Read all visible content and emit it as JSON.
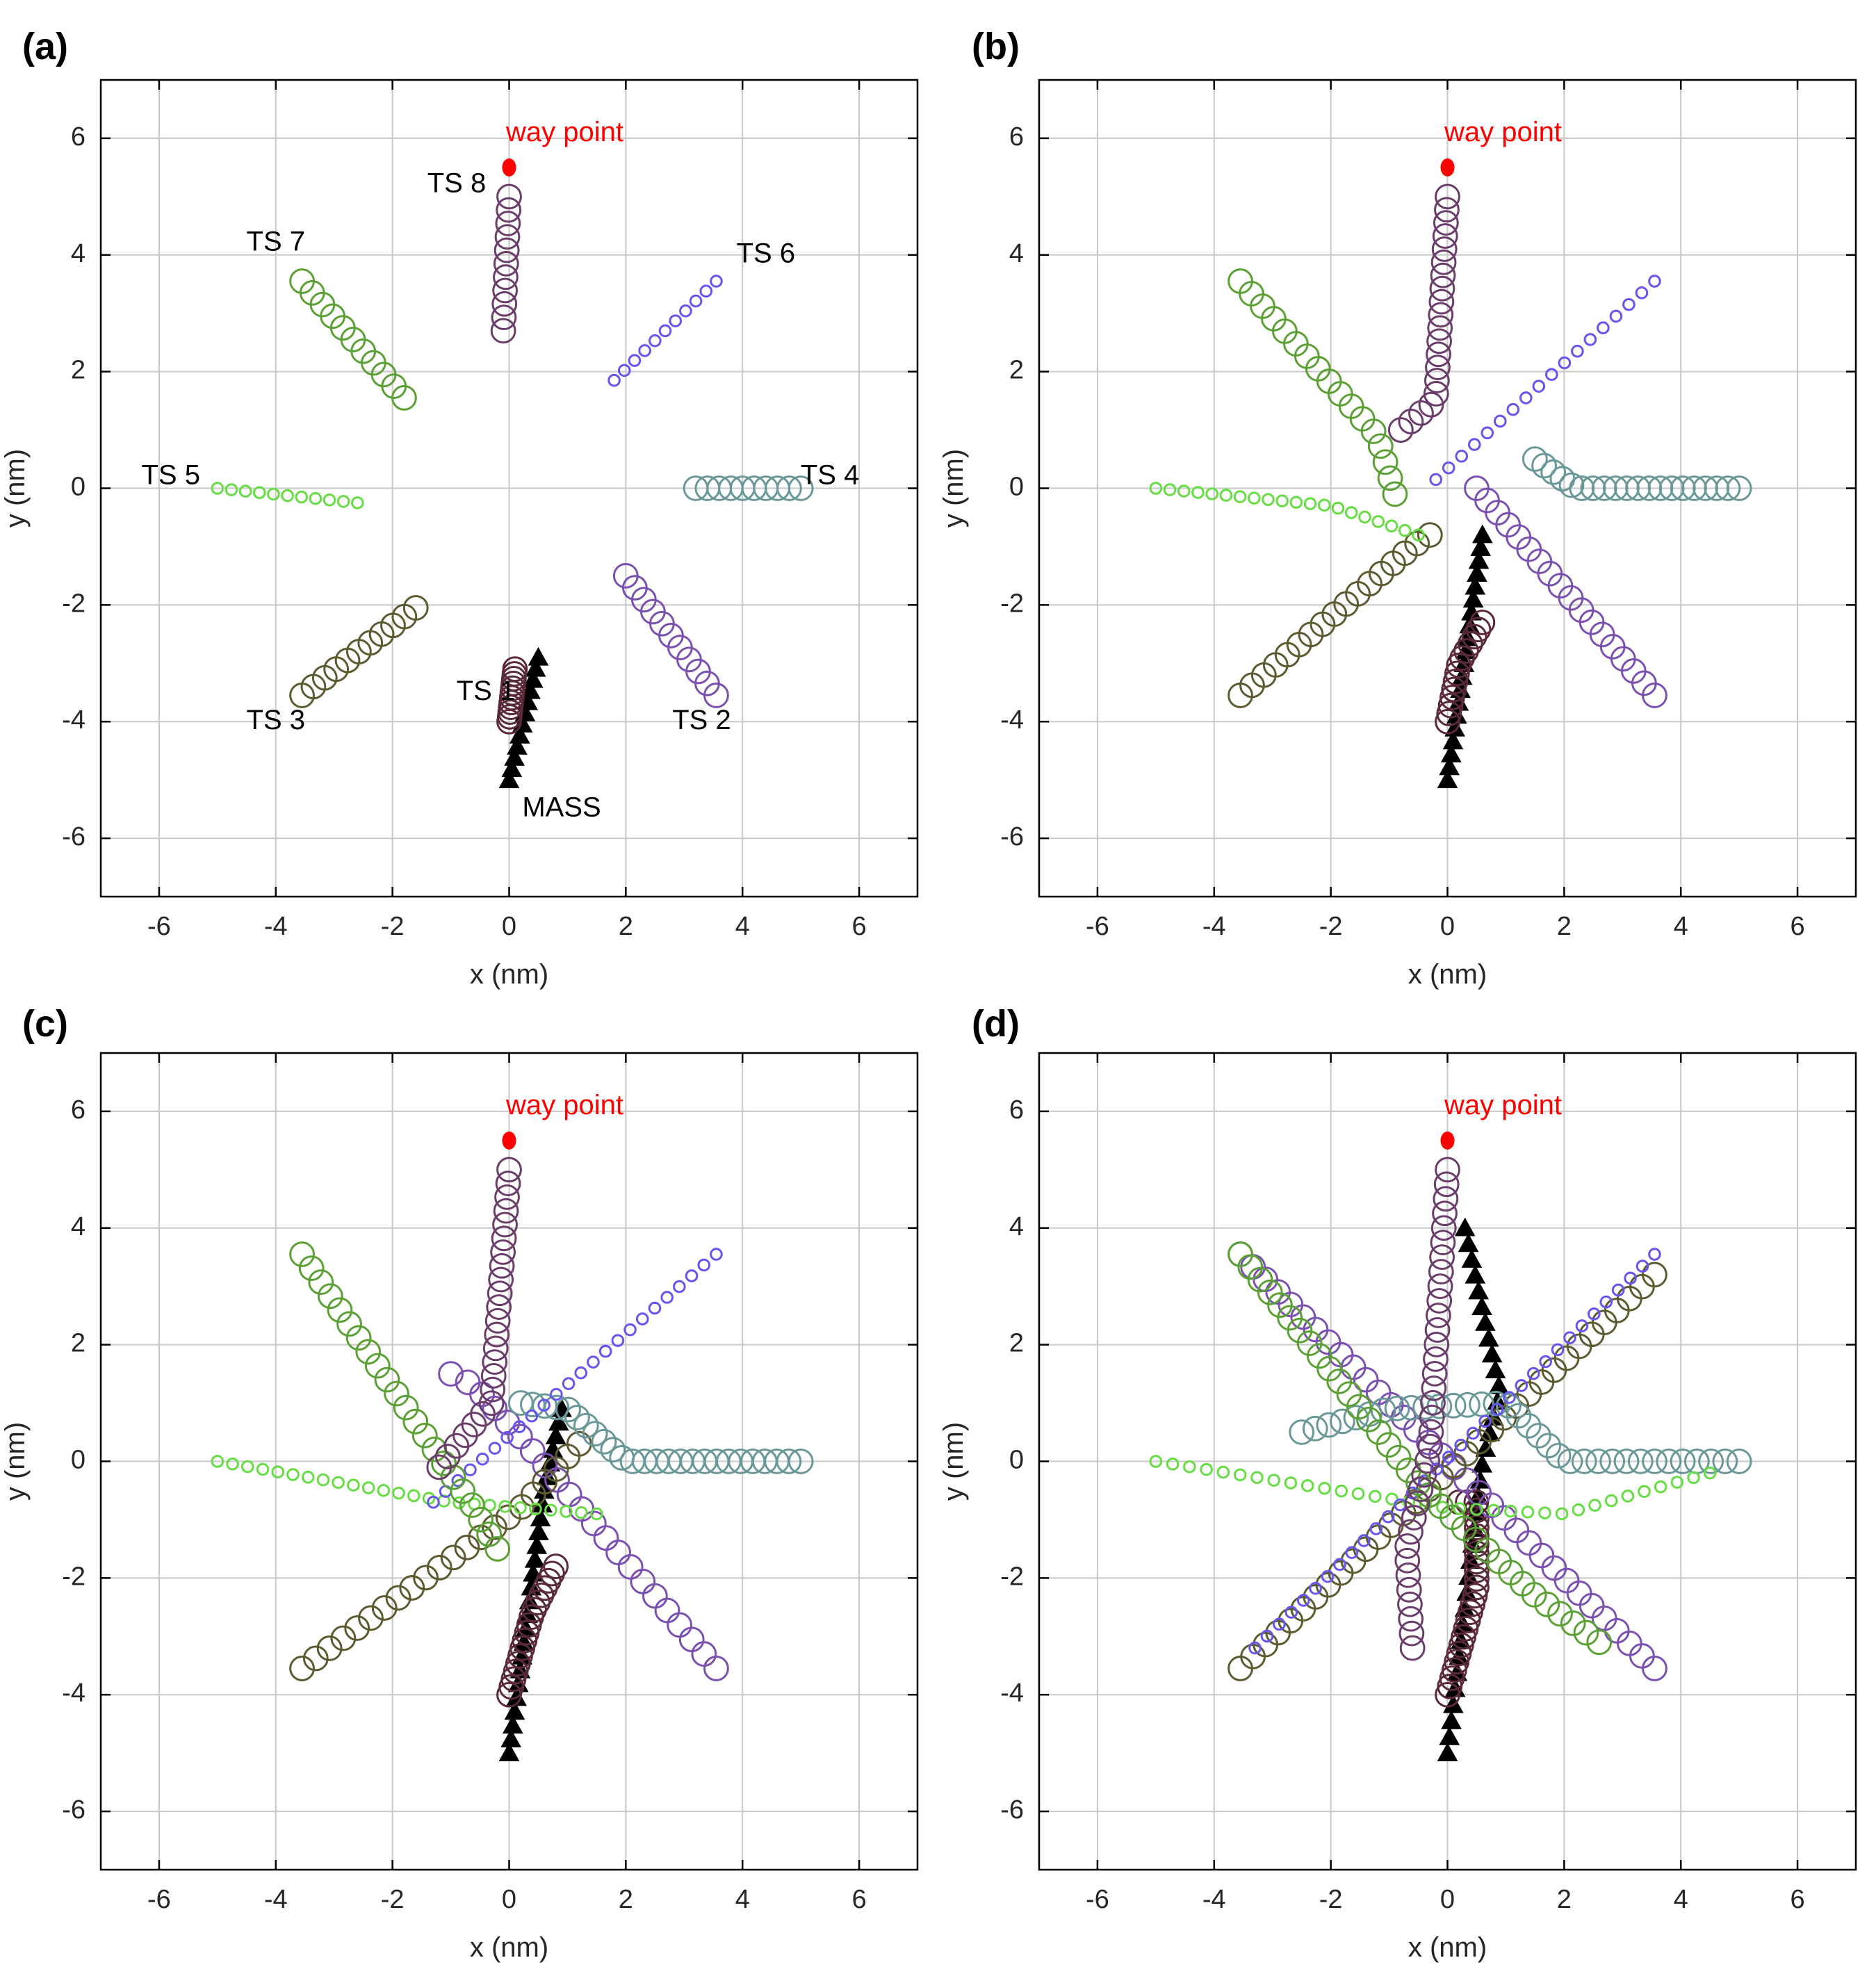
{
  "colors": {
    "mass": "#ff0000",
    "waypoint": "#ff0000",
    "TS1": "#5a2a38",
    "TS2": "#7a50b0",
    "TS3": "#5e5a30",
    "TS4": "#6a9898",
    "TS5": "#66dd44",
    "TS6": "#6655ee",
    "TS7": "#5aa035",
    "TS8": "#6a3d6a"
  },
  "chart_data": [
    {
      "panel": "(a)",
      "type": "scatter",
      "xlabel": "x (nm)",
      "ylabel": "y (nm)",
      "xlim": [
        -7,
        7
      ],
      "ylim": [
        -7,
        7
      ],
      "xticks": [
        -6,
        -4,
        -2,
        0,
        2,
        4,
        6
      ],
      "yticks": [
        -6,
        -4,
        -2,
        0,
        2,
        4,
        6
      ],
      "grid": true,
      "waypoint": {
        "x": 0,
        "y": 5.5,
        "label": "way point"
      },
      "labels": [
        {
          "text": "TS 1",
          "x": -0.4,
          "y": -3.5
        },
        {
          "text": "TS 2",
          "x": 3.3,
          "y": -4.0
        },
        {
          "text": "TS 3",
          "x": -4.0,
          "y": -4.0
        },
        {
          "text": "TS 4",
          "x": 5.5,
          "y": 0.2
        },
        {
          "text": "TS 5",
          "x": -5.8,
          "y": 0.2
        },
        {
          "text": "TS 6",
          "x": 4.4,
          "y": 4.0
        },
        {
          "text": "TS 7",
          "x": -4.0,
          "y": 4.2
        },
        {
          "text": "TS 8",
          "x": -0.9,
          "y": 5.2
        },
        {
          "text": "MASS",
          "x": 0.9,
          "y": -5.5
        }
      ],
      "series": [
        {
          "name": "MASS",
          "marker": "triangle",
          "path": [
            [
              0,
              -5
            ],
            [
              0.5,
              -2.9
            ]
          ],
          "n": 12
        },
        {
          "name": "TS1",
          "marker": "circle",
          "size": 13,
          "path": [
            [
              0,
              -4
            ],
            [
              0.1,
              -3.1
            ]
          ],
          "n": 12
        },
        {
          "name": "TS2",
          "marker": "circle",
          "size": 13,
          "path": [
            [
              2,
              -1.5
            ],
            [
              3.55,
              -3.55
            ]
          ],
          "n": 11
        },
        {
          "name": "TS3",
          "marker": "circle",
          "size": 13,
          "path": [
            [
              -3.55,
              -3.55
            ],
            [
              -1.6,
              -2.05
            ]
          ],
          "n": 11
        },
        {
          "name": "TS4",
          "marker": "circle",
          "size": 13,
          "path": [
            [
              3.2,
              0
            ],
            [
              5,
              0
            ]
          ],
          "n": 10
        },
        {
          "name": "TS5",
          "marker": "circle",
          "size": 6,
          "path": [
            [
              -5,
              0
            ],
            [
              -2.6,
              -0.25
            ]
          ],
          "n": 11
        },
        {
          "name": "TS6",
          "marker": "circle",
          "size": 6,
          "path": [
            [
              1.8,
              1.85
            ],
            [
              3.55,
              3.55
            ]
          ],
          "n": 11
        },
        {
          "name": "TS7",
          "marker": "circle",
          "size": 13,
          "path": [
            [
              -3.55,
              3.55
            ],
            [
              -1.8,
              1.55
            ]
          ],
          "n": 11
        },
        {
          "name": "TS8",
          "marker": "circle",
          "size": 13,
          "path": [
            [
              0,
              5
            ],
            [
              -0.1,
              2.7
            ]
          ],
          "n": 11
        }
      ]
    },
    {
      "panel": "(b)",
      "type": "scatter",
      "xlabel": "x (nm)",
      "ylabel": "y (nm)",
      "xlim": [
        -7,
        7
      ],
      "ylim": [
        -7,
        7
      ],
      "xticks": [
        -6,
        -4,
        -2,
        0,
        2,
        4,
        6
      ],
      "yticks": [
        -6,
        -4,
        -2,
        0,
        2,
        4,
        6
      ],
      "grid": true,
      "waypoint": {
        "x": 0,
        "y": 5.5,
        "label": "way point"
      },
      "labels": [],
      "series": [
        {
          "name": "MASS",
          "marker": "triangle",
          "path": [
            [
              0,
              -5
            ],
            [
              0.6,
              -0.8
            ]
          ],
          "n": 20
        },
        {
          "name": "TS1",
          "marker": "circle",
          "size": 13,
          "path": [
            [
              0,
              -4
            ],
            [
              0.2,
              -3.0
            ],
            [
              0.6,
              -2.3
            ]
          ],
          "n": 14
        },
        {
          "name": "TS2",
          "marker": "circle",
          "size": 13,
          "path": [
            [
              3.55,
              -3.55
            ],
            [
              0.5,
              0
            ]
          ],
          "n": 18
        },
        {
          "name": "TS3",
          "marker": "circle",
          "size": 13,
          "path": [
            [
              -3.55,
              -3.55
            ],
            [
              -0.6,
              -1
            ],
            [
              -0.3,
              -0.8
            ]
          ],
          "n": 17
        },
        {
          "name": "TS4",
          "marker": "circle",
          "size": 13,
          "path": [
            [
              5,
              0
            ],
            [
              2.2,
              0
            ],
            [
              1.5,
              0.5
            ]
          ],
          "n": 20
        },
        {
          "name": "TS5",
          "marker": "circle",
          "size": 6,
          "path": [
            [
              -5,
              0
            ],
            [
              -2,
              -0.3
            ],
            [
              -0.5,
              -0.8
            ]
          ],
          "n": 20
        },
        {
          "name": "TS6",
          "marker": "circle",
          "size": 6,
          "path": [
            [
              3.55,
              3.55
            ],
            [
              -0.2,
              0.15
            ]
          ],
          "n": 18
        },
        {
          "name": "TS7",
          "marker": "circle",
          "size": 13,
          "path": [
            [
              -3.55,
              3.55
            ],
            [
              -1.2,
              0.9
            ],
            [
              -0.9,
              -0.1
            ]
          ],
          "n": 17
        },
        {
          "name": "TS8",
          "marker": "circle",
          "size": 13,
          "path": [
            [
              0,
              5
            ],
            [
              -0.2,
              1.5
            ],
            [
              -0.8,
              1
            ]
          ],
          "n": 20
        }
      ]
    },
    {
      "panel": "(c)",
      "type": "scatter",
      "xlabel": "x (nm)",
      "ylabel": "y (nm)",
      "xlim": [
        -7,
        7
      ],
      "ylim": [
        -7,
        7
      ],
      "xticks": [
        -6,
        -4,
        -2,
        0,
        2,
        4,
        6
      ],
      "yticks": [
        -6,
        -4,
        -2,
        0,
        2,
        4,
        6
      ],
      "grid": true,
      "waypoint": {
        "x": 0,
        "y": 5.5,
        "label": "way point"
      },
      "labels": [],
      "series": [
        {
          "name": "MASS",
          "marker": "triangle",
          "path": [
            [
              0,
              -5
            ],
            [
              0.6,
              -0.5
            ],
            [
              0.9,
              0.9
            ]
          ],
          "n": 26
        },
        {
          "name": "TS1",
          "marker": "circle",
          "size": 13,
          "path": [
            [
              0,
              -4
            ],
            [
              0.4,
              -2.6
            ],
            [
              0.8,
              -1.8
            ]
          ],
          "n": 18
        },
        {
          "name": "TS2",
          "marker": "circle",
          "size": 13,
          "path": [
            [
              3.55,
              -3.55
            ],
            [
              0.3,
              0.3
            ],
            [
              -0.6,
              1.3
            ],
            [
              -1,
              1.5
            ]
          ],
          "n": 22
        },
        {
          "name": "TS3",
          "marker": "circle",
          "size": 13,
          "path": [
            [
              -3.55,
              -3.55
            ],
            [
              0.2,
              -0.8
            ],
            [
              1.2,
              0.3
            ]
          ],
          "n": 22
        },
        {
          "name": "TS4",
          "marker": "circle",
          "size": 13,
          "path": [
            [
              5,
              0
            ],
            [
              2,
              0
            ],
            [
              1,
              0.9
            ],
            [
              0.2,
              1
            ]
          ],
          "n": 26
        },
        {
          "name": "TS5",
          "marker": "circle",
          "size": 6,
          "path": [
            [
              -5,
              0
            ],
            [
              -1,
              -0.7
            ],
            [
              1.5,
              -0.9
            ]
          ],
          "n": 26
        },
        {
          "name": "TS6",
          "marker": "circle",
          "size": 6,
          "path": [
            [
              3.55,
              3.55
            ],
            [
              -1.3,
              -0.7
            ]
          ],
          "n": 24
        },
        {
          "name": "TS7",
          "marker": "circle",
          "size": 13,
          "path": [
            [
              -3.55,
              3.55
            ],
            [
              -0.6,
              -0.8
            ],
            [
              -0.2,
              -1.5
            ]
          ],
          "n": 22
        },
        {
          "name": "TS8",
          "marker": "circle",
          "size": 13,
          "path": [
            [
              0,
              5
            ],
            [
              -0.3,
              1
            ],
            [
              -1.2,
              -0.1
            ]
          ],
          "n": 24
        }
      ]
    },
    {
      "panel": "(d)",
      "type": "scatter",
      "xlabel": "x (nm)",
      "ylabel": "y (nm)",
      "xlim": [
        -7,
        7
      ],
      "ylim": [
        -7,
        7
      ],
      "xticks": [
        -6,
        -4,
        -2,
        0,
        2,
        4,
        6
      ],
      "yticks": [
        -6,
        -4,
        -2,
        0,
        2,
        4,
        6
      ],
      "grid": true,
      "waypoint": {
        "x": 0,
        "y": 5.5,
        "label": "way point"
      },
      "labels": [],
      "series": [
        {
          "name": "MASS",
          "marker": "triangle",
          "path": [
            [
              0,
              -5
            ],
            [
              0.6,
              0
            ],
            [
              0.9,
              1.2
            ],
            [
              0.3,
              4
            ]
          ],
          "n": 34
        },
        {
          "name": "TS1",
          "marker": "circle",
          "size": 13,
          "path": [
            [
              0,
              -4
            ],
            [
              0.5,
              -2.2
            ],
            [
              0.5,
              -0.7
            ],
            [
              0.2,
              -0.7
            ]
          ],
          "n": 26
        },
        {
          "name": "TS2",
          "marker": "circle",
          "size": 13,
          "path": [
            [
              3.55,
              -3.55
            ],
            [
              -3.55,
              3.55
            ]
          ],
          "n": 34
        },
        {
          "name": "TS3",
          "marker": "circle",
          "size": 13,
          "path": [
            [
              -3.55,
              -3.55
            ],
            [
              3.55,
              3.2
            ]
          ],
          "n": 34
        },
        {
          "name": "TS4",
          "marker": "circle",
          "size": 13,
          "path": [
            [
              5,
              0
            ],
            [
              2,
              0
            ],
            [
              1,
              1
            ],
            [
              -1,
              0.9
            ],
            [
              -2.5,
              0.5
            ]
          ],
          "n": 34
        },
        {
          "name": "TS5",
          "marker": "circle",
          "size": 6,
          "path": [
            [
              -5,
              0
            ],
            [
              0,
              -0.8
            ],
            [
              2,
              -0.9
            ],
            [
              4.5,
              -0.2
            ]
          ],
          "n": 34
        },
        {
          "name": "TS6",
          "marker": "circle",
          "size": 6,
          "path": [
            [
              3.55,
              3.55
            ],
            [
              -3.3,
              -3.2
            ]
          ],
          "n": 34
        },
        {
          "name": "TS7",
          "marker": "circle",
          "size": 13,
          "path": [
            [
              -3.55,
              3.55
            ],
            [
              -0.4,
              -0.5
            ],
            [
              1.5,
              -2.3
            ],
            [
              2.6,
              -3.1
            ]
          ],
          "n": 34
        },
        {
          "name": "TS8",
          "marker": "circle",
          "size": 13,
          "path": [
            [
              0,
              5
            ],
            [
              -0.3,
              0.2
            ],
            [
              -0.7,
              -1.5
            ],
            [
              -0.6,
              -3.2
            ]
          ],
          "n": 34
        }
      ]
    }
  ]
}
